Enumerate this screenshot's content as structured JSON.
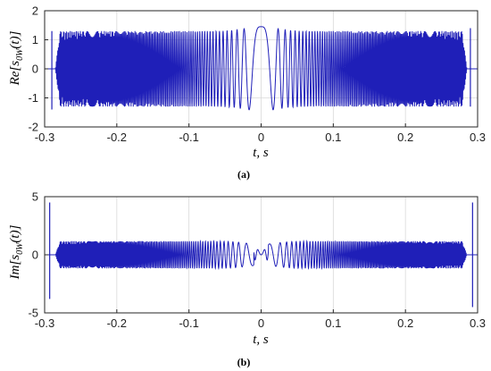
{
  "figure": {
    "colors": {
      "signal": "#1f1fb8",
      "axis": "#262626",
      "grid": "#d9d9d9",
      "background": "#ffffff"
    }
  },
  "chart_data": [
    {
      "type": "line",
      "panel_label": "(a)",
      "xlabel": "t, s",
      "ylabel": "Re[s0W(t)]",
      "ylabel_main": "Re[",
      "ylabel_s": "s",
      "ylabel_sub": "0W",
      "ylabel_end": "(t)]",
      "xlim": [
        -0.3,
        0.3
      ],
      "ylim": [
        -2,
        2
      ],
      "xticks": [
        -0.3,
        -0.2,
        -0.1,
        0,
        0.1,
        0.2,
        0.3
      ],
      "xtick_labels": [
        "-0.3",
        "-0.2",
        "-0.1",
        "0",
        "0.1",
        "0.2",
        "0.3"
      ],
      "yticks": [
        -2,
        -1,
        0,
        1,
        2
      ],
      "ytick_labels": [
        "-2",
        "-1",
        "0",
        "1",
        "2"
      ],
      "grid": true,
      "signal": {
        "description_shape": "chirp oscillation, frequency increasing with |t|",
        "support": [
          -0.285,
          0.285
        ],
        "envelope_outer": 1.3,
        "envelope_center": 1.45,
        "center_peak_t": 0,
        "end_spikes": [
          {
            "t": -0.29,
            "min": -1.4,
            "max": 1.3
          },
          {
            "t": 0.29,
            "min": -1.3,
            "max": 1.4
          }
        ]
      }
    },
    {
      "type": "line",
      "panel_label": "(b)",
      "xlabel": "t, s",
      "ylabel": "Im[s0W(t)]",
      "ylabel_main": "Im[",
      "ylabel_s": "s",
      "ylabel_sub": "0W",
      "ylabel_end": "(t)]",
      "xlim": [
        -0.3,
        0.3
      ],
      "ylim": [
        -5,
        5
      ],
      "xticks": [
        -0.3,
        -0.2,
        -0.1,
        0,
        0.1,
        0.2,
        0.3
      ],
      "xtick_labels": [
        "-0.3",
        "-0.2",
        "-0.1",
        "0",
        "0.1",
        "0.2",
        "0.3"
      ],
      "yticks": [
        -5,
        0,
        5
      ],
      "ytick_labels": [
        "-5",
        "0",
        "5"
      ],
      "grid": true,
      "signal": {
        "description_shape": "chirp oscillation, frequency increasing with |t|, odd symmetry",
        "support": [
          -0.285,
          0.285
        ],
        "envelope_outer": 1.3,
        "envelope_center": 1.0,
        "center_peak_t": 0,
        "end_spikes": [
          {
            "t": -0.293,
            "min": -3.8,
            "max": 4.5
          },
          {
            "t": 0.293,
            "min": -4.5,
            "max": 4.5
          }
        ]
      }
    }
  ]
}
